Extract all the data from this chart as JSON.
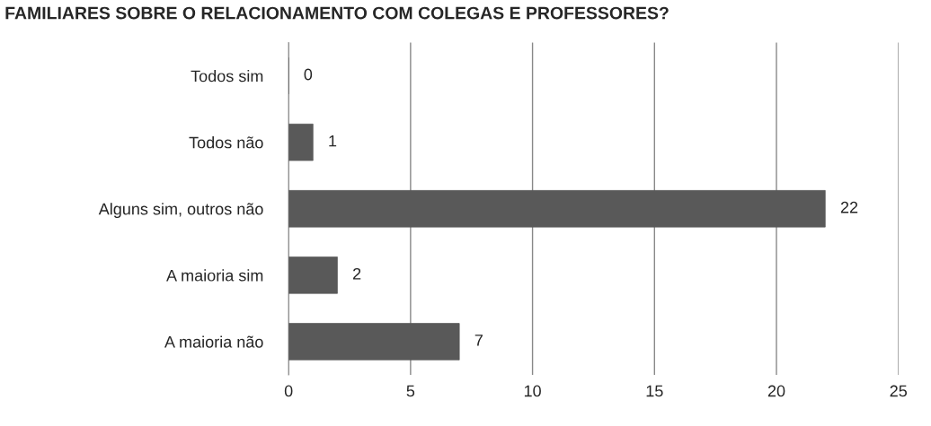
{
  "chart_data": {
    "type": "bar",
    "orientation": "horizontal",
    "title": "FAMILIARES SOBRE O RELACIONAMENTO COM COLEGAS E PROFESSORES?",
    "categories": [
      "Todos sim",
      "Todos não",
      "Alguns sim, outros não",
      "A maioria sim",
      "A maioria não"
    ],
    "values": [
      0,
      1,
      22,
      2,
      7
    ],
    "color": "#595959",
    "xlim": [
      0,
      25
    ],
    "xticks": [
      0,
      5,
      10,
      15,
      20,
      25
    ],
    "grid": "x",
    "data_labels": true,
    "legend": false
  }
}
